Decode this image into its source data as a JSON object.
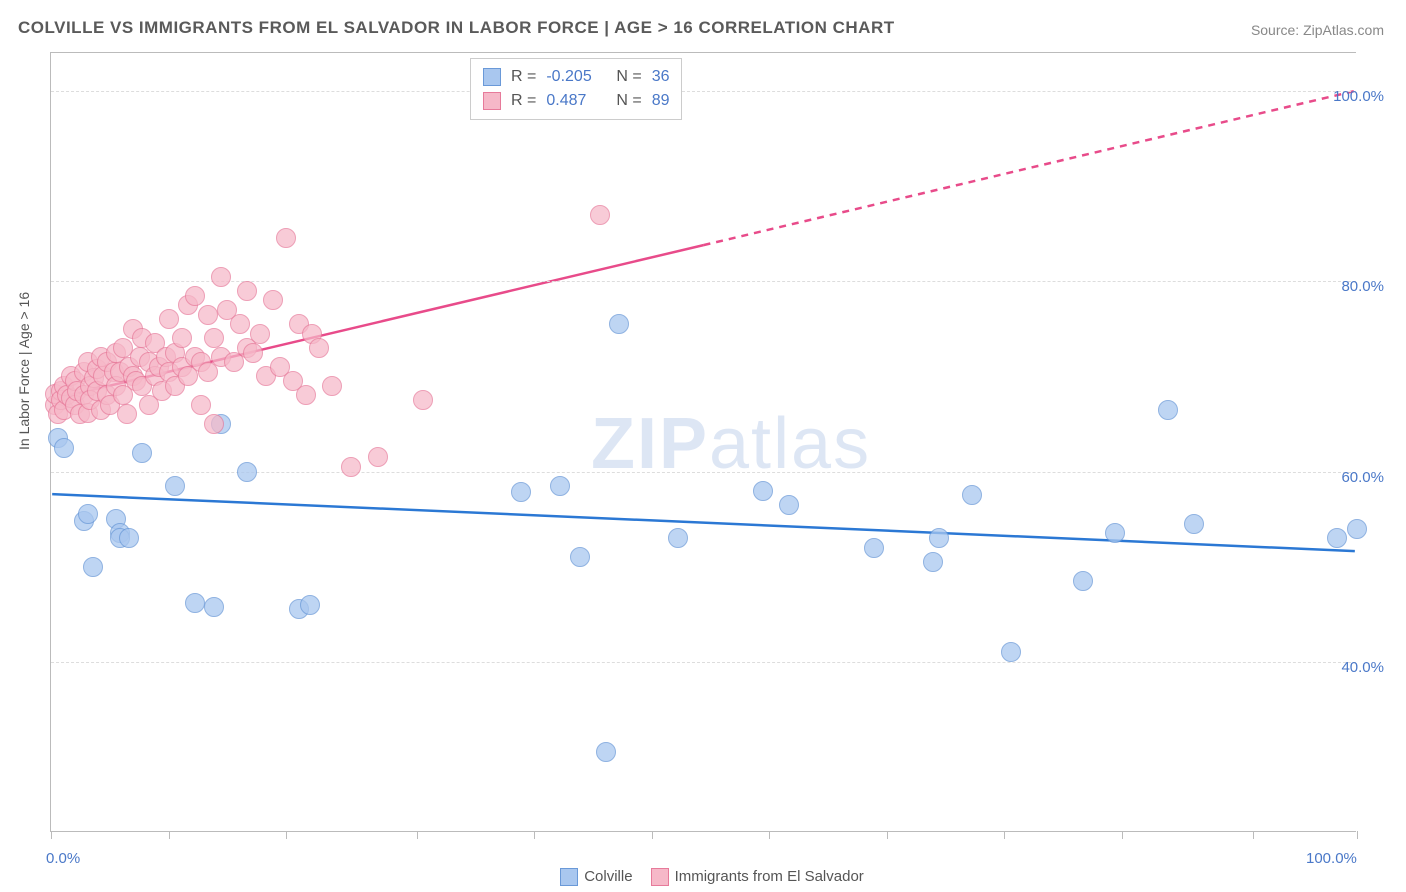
{
  "title": "COLVILLE VS IMMIGRANTS FROM EL SALVADOR IN LABOR FORCE | AGE > 16 CORRELATION CHART",
  "source": "Source: ZipAtlas.com",
  "ylabel": "In Labor Force | Age > 16",
  "watermark_a": "ZIP",
  "watermark_b": "atlas",
  "chart": {
    "type": "scatter",
    "xlim": [
      0,
      100
    ],
    "ylim": [
      22,
      104
    ],
    "xtick_positions_pct": [
      0,
      9,
      18,
      28,
      37,
      46,
      55,
      64,
      73,
      82,
      92,
      100
    ],
    "xtick_labels": {
      "0": "0.0%",
      "100": "100.0%"
    },
    "ytick_lines": [
      40,
      60,
      80,
      100
    ],
    "ytick_labels": {
      "40": "40.0%",
      "60": "60.0%",
      "80": "80.0%",
      "100": "100.0%"
    },
    "grid_color": "#dddddd",
    "background_color": "#ffffff",
    "axis_color": "#bbbbbb",
    "tick_label_color": "#4a78c8"
  },
  "series": [
    {
      "name": "Colville",
      "marker_fill": "#a9c7ef",
      "marker_stroke": "#6a99d8",
      "marker_opacity": 0.75,
      "marker_radius": 10,
      "line_color": "#2b78d4",
      "line_width": 2.5,
      "r": "-0.205",
      "n": "36",
      "trend": {
        "x1": 0,
        "y1": 57.5,
        "x2": 100,
        "y2": 51.5,
        "dashed_from": 100
      },
      "points": [
        [
          0.5,
          63.5
        ],
        [
          1.0,
          62.5
        ],
        [
          2.5,
          54.8
        ],
        [
          2.8,
          55.5
        ],
        [
          3.2,
          50.0
        ],
        [
          5.0,
          55.0
        ],
        [
          5.3,
          53.5
        ],
        [
          5.3,
          53.0
        ],
        [
          6.0,
          53.0
        ],
        [
          7.0,
          62.0
        ],
        [
          9.5,
          58.5
        ],
        [
          11.0,
          46.2
        ],
        [
          12.5,
          45.8
        ],
        [
          13.0,
          65.0
        ],
        [
          15.0,
          60.0
        ],
        [
          19.0,
          45.5
        ],
        [
          19.8,
          46.0
        ],
        [
          36.0,
          57.8
        ],
        [
          39.0,
          58.5
        ],
        [
          40.5,
          51.0
        ],
        [
          42.5,
          30.5
        ],
        [
          43.5,
          75.5
        ],
        [
          48.0,
          53.0
        ],
        [
          54.5,
          58.0
        ],
        [
          56.5,
          56.5
        ],
        [
          63.0,
          52.0
        ],
        [
          67.5,
          50.5
        ],
        [
          68.0,
          53.0
        ],
        [
          70.5,
          57.5
        ],
        [
          73.5,
          41.0
        ],
        [
          79.0,
          48.5
        ],
        [
          81.5,
          53.5
        ],
        [
          85.5,
          66.5
        ],
        [
          87.5,
          54.5
        ],
        [
          98.5,
          53.0
        ],
        [
          100.0,
          54.0
        ]
      ]
    },
    {
      "name": "Immigrants from El Salvador",
      "marker_fill": "#f6b8c8",
      "marker_stroke": "#e77a9a",
      "marker_opacity": 0.72,
      "marker_radius": 10,
      "line_color": "#e84b8a",
      "line_width": 2.5,
      "r": "0.487",
      "n": "89",
      "trend": {
        "x1": 0,
        "y1": 67.5,
        "x2": 100,
        "y2": 100,
        "dashed_from": 50
      },
      "points": [
        [
          0.3,
          67.0
        ],
        [
          0.3,
          68.2
        ],
        [
          0.5,
          66.0
        ],
        [
          0.8,
          68.5
        ],
        [
          0.8,
          67.5
        ],
        [
          1.0,
          69.0
        ],
        [
          1.0,
          66.5
        ],
        [
          1.2,
          68.0
        ],
        [
          1.5,
          67.7
        ],
        [
          1.5,
          70.0
        ],
        [
          1.8,
          67.0
        ],
        [
          1.8,
          69.5
        ],
        [
          2.0,
          68.5
        ],
        [
          2.2,
          66.0
        ],
        [
          2.5,
          70.5
        ],
        [
          2.5,
          68.0
        ],
        [
          2.8,
          66.2
        ],
        [
          2.8,
          71.5
        ],
        [
          3.0,
          69.0
        ],
        [
          3.0,
          67.5
        ],
        [
          3.3,
          69.8
        ],
        [
          3.5,
          70.8
        ],
        [
          3.5,
          68.5
        ],
        [
          3.8,
          72.0
        ],
        [
          3.8,
          66.5
        ],
        [
          4.0,
          70.0
        ],
        [
          4.3,
          71.5
        ],
        [
          4.3,
          68.0
        ],
        [
          4.5,
          67.0
        ],
        [
          4.8,
          70.5
        ],
        [
          5.0,
          72.5
        ],
        [
          5.0,
          69.0
        ],
        [
          5.3,
          70.5
        ],
        [
          5.5,
          73.0
        ],
        [
          5.5,
          68.0
        ],
        [
          5.8,
          66.0
        ],
        [
          6.0,
          71.0
        ],
        [
          6.3,
          75.0
        ],
        [
          6.3,
          70.0
        ],
        [
          6.5,
          69.5
        ],
        [
          6.8,
          72.0
        ],
        [
          7.0,
          74.0
        ],
        [
          7.0,
          69.0
        ],
        [
          7.5,
          71.5
        ],
        [
          7.5,
          67.0
        ],
        [
          8.0,
          70.0
        ],
        [
          8.0,
          73.5
        ],
        [
          8.3,
          71.0
        ],
        [
          8.5,
          68.5
        ],
        [
          8.8,
          72.0
        ],
        [
          9.0,
          76.0
        ],
        [
          9.0,
          70.5
        ],
        [
          9.5,
          72.5
        ],
        [
          9.5,
          69.0
        ],
        [
          10.0,
          74.0
        ],
        [
          10.0,
          71.0
        ],
        [
          10.5,
          77.5
        ],
        [
          10.5,
          70.0
        ],
        [
          11.0,
          78.5
        ],
        [
          11.0,
          72.0
        ],
        [
          11.5,
          71.5
        ],
        [
          11.5,
          67.0
        ],
        [
          12.0,
          76.5
        ],
        [
          12.0,
          70.5
        ],
        [
          12.5,
          74.0
        ],
        [
          12.5,
          65.0
        ],
        [
          13.0,
          80.5
        ],
        [
          13.0,
          72.0
        ],
        [
          13.5,
          77.0
        ],
        [
          14.0,
          71.5
        ],
        [
          14.5,
          75.5
        ],
        [
          15.0,
          73.0
        ],
        [
          15.0,
          79.0
        ],
        [
          15.5,
          72.5
        ],
        [
          16.0,
          74.5
        ],
        [
          16.5,
          70.0
        ],
        [
          17.0,
          78.0
        ],
        [
          17.5,
          71.0
        ],
        [
          18.0,
          84.5
        ],
        [
          18.5,
          69.5
        ],
        [
          19.0,
          75.5
        ],
        [
          19.5,
          68.0
        ],
        [
          20.0,
          74.5
        ],
        [
          20.5,
          73.0
        ],
        [
          21.5,
          69.0
        ],
        [
          23.0,
          60.5
        ],
        [
          25.0,
          61.5
        ],
        [
          28.5,
          67.5
        ],
        [
          42.0,
          87.0
        ]
      ]
    }
  ],
  "legend": {
    "stats_box": {
      "r_label": "R =",
      "n_label": "N ="
    },
    "bottom": [
      {
        "label": "Colville",
        "fill": "#a9c7ef",
        "stroke": "#6a99d8"
      },
      {
        "label": "Immigrants from El Salvador",
        "fill": "#f6b8c8",
        "stroke": "#e77a9a"
      }
    ]
  }
}
